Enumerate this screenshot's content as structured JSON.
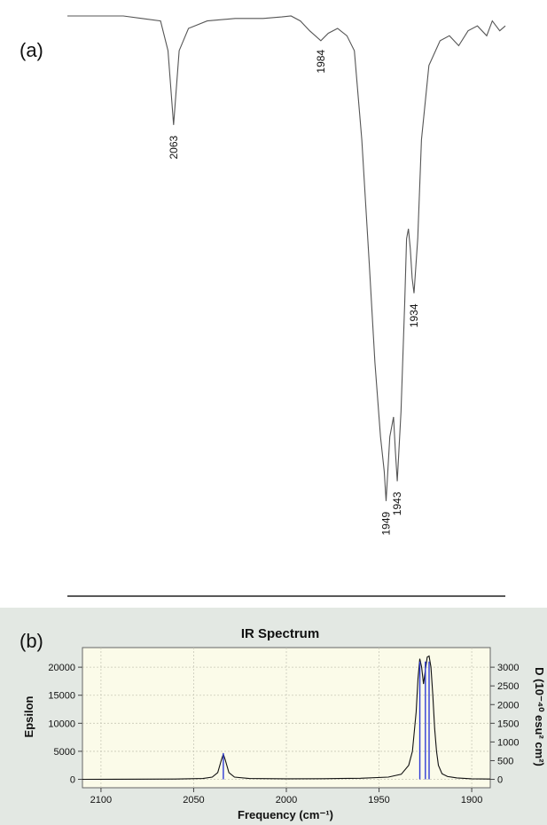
{
  "chart_data": [
    {
      "type": "line",
      "panel_label": "(a)",
      "title": "",
      "xlabel": "",
      "ylabel": "",
      "x_reversed": true,
      "xlim": [
        2120,
        1885
      ],
      "ylim": [
        0,
        1
      ],
      "y_description": "transmittance (relative, baseline near 1, peaks point down)",
      "x_ticks": [
        2100,
        2000,
        1900
      ],
      "grid": false,
      "series": [
        {
          "name": "",
          "color": "#555555",
          "x": [
            2120,
            2090,
            2080,
            2070,
            2066,
            2063,
            2060,
            2055,
            2045,
            2030,
            2015,
            2005,
            2000,
            1995,
            1990,
            1984,
            1980,
            1975,
            1970,
            1966,
            1962,
            1958,
            1955,
            1952,
            1950,
            1949,
            1947,
            1945,
            1944,
            1943,
            1941,
            1939,
            1938,
            1937,
            1936,
            1935,
            1934,
            1932,
            1930,
            1926,
            1920,
            1915,
            1910,
            1905,
            1900,
            1895,
            1892,
            1888,
            1885
          ],
          "values": [
            1.0,
            1.0,
            0.995,
            0.99,
            0.93,
            0.78,
            0.93,
            0.975,
            0.99,
            0.995,
            0.995,
            0.998,
            1.0,
            0.99,
            0.97,
            0.95,
            0.965,
            0.975,
            0.96,
            0.93,
            0.75,
            0.5,
            0.3,
            0.15,
            0.08,
            0.02,
            0.15,
            0.19,
            0.12,
            0.06,
            0.2,
            0.42,
            0.55,
            0.57,
            0.53,
            0.47,
            0.44,
            0.55,
            0.75,
            0.9,
            0.95,
            0.96,
            0.94,
            0.97,
            0.98,
            0.96,
            0.99,
            0.97,
            0.98
          ]
        }
      ],
      "annotations": [
        {
          "text": "2063",
          "x": 2063
        },
        {
          "text": "1984",
          "x": 1984
        },
        {
          "text": "1949",
          "x": 1949
        },
        {
          "text": "1943",
          "x": 1943
        },
        {
          "text": "1934",
          "x": 1934
        }
      ]
    },
    {
      "type": "line",
      "panel_label": "(b)",
      "title": "IR Spectrum",
      "xlabel": "Frequency (cm⁻¹)",
      "ylabel": "Epsilon",
      "y2label": "D (10⁻⁴⁰ esu² cm²)",
      "x_reversed": true,
      "xlim": [
        2110,
        1890
      ],
      "ylim": [
        -1500,
        23500
      ],
      "y2lim": [
        -225,
        3525
      ],
      "x_ticks": [
        2100,
        2050,
        2000,
        1950,
        1900
      ],
      "y_ticks": [
        0,
        5000,
        10000,
        15000,
        20000
      ],
      "y2_ticks": [
        0,
        500,
        1000,
        1500,
        2000,
        2500,
        3000
      ],
      "grid": true,
      "series": [
        {
          "name": "",
          "kind": "spectrum",
          "color": "#111111",
          "x": [
            2110,
            2060,
            2045,
            2040,
            2037,
            2035,
            2034,
            2033,
            2031,
            2028,
            2020,
            2000,
            1980,
            1960,
            1945,
            1938,
            1934,
            1932,
            1930,
            1929,
            1928,
            1927,
            1926,
            1925,
            1924,
            1923,
            1922,
            1921,
            1920,
            1919,
            1918,
            1916,
            1913,
            1908,
            1900,
            1890
          ],
          "values": [
            0,
            50,
            150,
            400,
            1200,
            3500,
            4500,
            3500,
            1200,
            400,
            150,
            100,
            120,
            200,
            400,
            900,
            2500,
            5000,
            12000,
            18000,
            21500,
            20000,
            17000,
            19500,
            21800,
            22000,
            20000,
            15000,
            9000,
            5000,
            2500,
            1000,
            500,
            250,
            100,
            50
          ]
        },
        {
          "name": "",
          "kind": "stick",
          "color": "#2f3bd6",
          "x": [
            2034,
            1928,
            1925,
            1923
          ],
          "values": [
            700,
            3150,
            3150,
            3150
          ]
        }
      ]
    }
  ]
}
